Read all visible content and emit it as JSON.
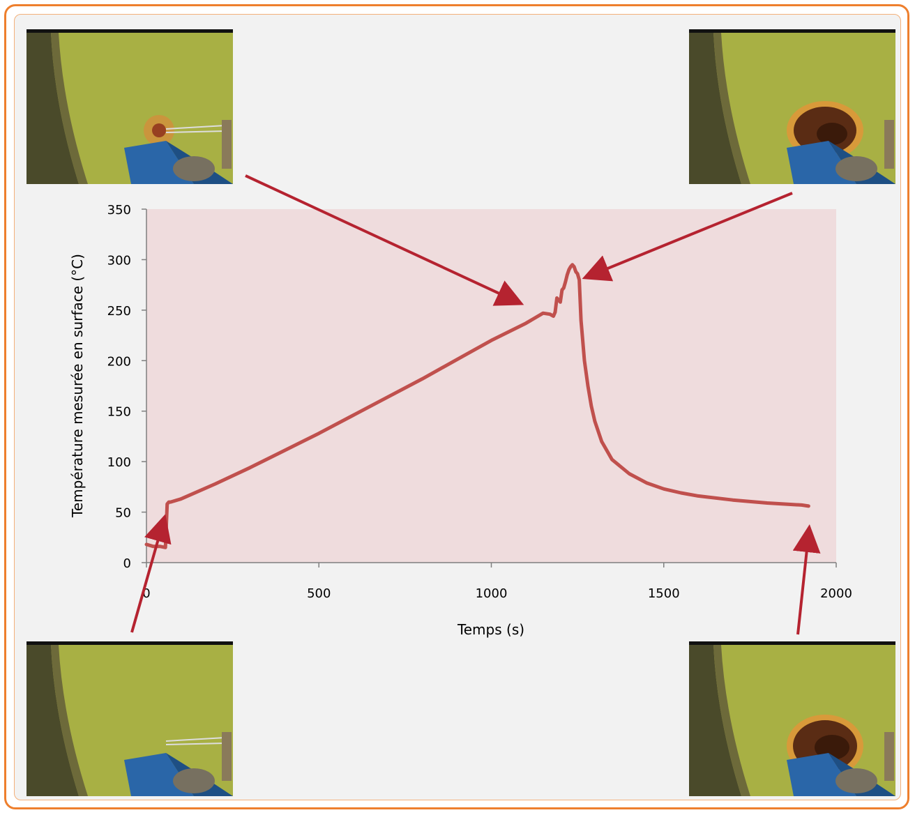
{
  "colors": {
    "frame": "#ee7f2d",
    "plot_area": "#efdcdd",
    "line": "#c0504d",
    "arrow": "#b52330",
    "photo_wall": "#a8b044",
    "photo_fixture": "#2a66a8"
  },
  "photos": [
    {
      "name": "photo-top-left",
      "stage": "early-charring"
    },
    {
      "name": "photo-top-right",
      "stage": "peak-burn"
    },
    {
      "name": "photo-bottom-left",
      "stage": "start"
    },
    {
      "name": "photo-bottom-right",
      "stage": "end"
    }
  ],
  "chart_data": {
    "type": "line",
    "xlabel": "Temps (s)",
    "ylabel": "Température mesurée en surface (°C)",
    "xlim": [
      0,
      2000
    ],
    "ylim": [
      0,
      350
    ],
    "xticks": [
      0,
      500,
      1000,
      1500,
      2000
    ],
    "yticks": [
      0,
      50,
      100,
      150,
      200,
      250,
      300,
      350
    ],
    "grid": false,
    "series": [
      {
        "x": [
          0,
          20,
          40,
          55,
          60,
          65,
          70,
          100,
          200,
          300,
          400,
          500,
          600,
          700,
          800,
          900,
          1000,
          1100,
          1150,
          1170,
          1180,
          1185,
          1190,
          1200,
          1205,
          1210,
          1215,
          1220,
          1225,
          1230,
          1235,
          1240,
          1245,
          1250,
          1255,
          1260,
          1270,
          1280,
          1290,
          1300,
          1320,
          1350,
          1400,
          1450,
          1500,
          1550,
          1600,
          1700,
          1800,
          1900,
          1920
        ],
        "y": [
          18,
          16,
          16,
          15,
          58,
          60,
          60,
          63,
          78,
          94,
          111,
          128,
          146,
          164,
          182,
          201,
          220,
          237,
          247,
          246,
          244,
          248,
          262,
          258,
          270,
          272,
          278,
          285,
          290,
          293,
          295,
          293,
          288,
          286,
          280,
          240,
          200,
          175,
          155,
          140,
          120,
          102,
          88,
          79,
          73,
          69,
          66,
          62,
          59,
          57,
          56
        ]
      }
    ]
  }
}
